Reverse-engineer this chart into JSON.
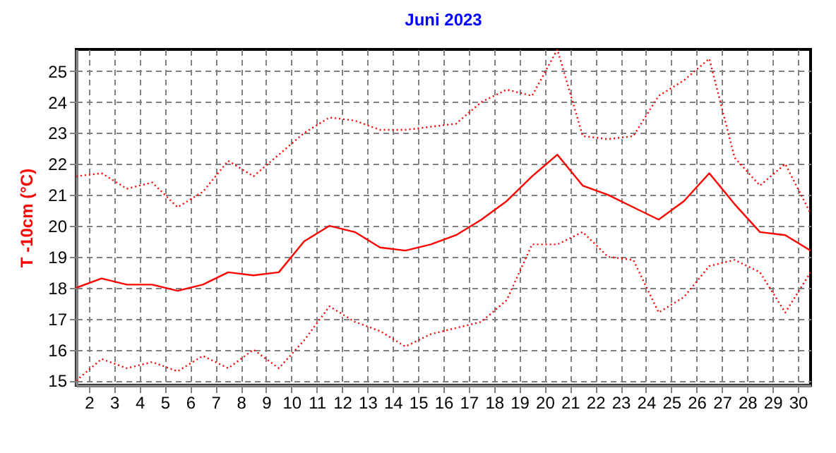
{
  "chart_data": {
    "type": "line",
    "title": "Juni 2023",
    "ylabel": "T -10cm (°C)",
    "x": [
      1.5,
      2.5,
      3.5,
      4.5,
      5.5,
      6.5,
      7.5,
      8.5,
      9.5,
      10.5,
      11.5,
      12.5,
      13.5,
      14.5,
      15.5,
      16.5,
      17.5,
      18.5,
      19.5,
      20.5,
      21.5,
      22.5,
      23.5,
      24.5,
      25.5,
      26.5,
      27.5,
      28.5,
      29.5,
      30.5
    ],
    "series": [
      {
        "color": "#ff0000",
        "line_style": "dotted",
        "values": [
          21.6,
          21.7,
          21.2,
          21.4,
          20.6,
          21.1,
          22.1,
          21.6,
          22.3,
          23.0,
          23.5,
          23.4,
          23.1,
          23.1,
          23.2,
          23.3,
          24.0,
          24.4,
          24.2,
          25.7,
          22.9,
          22.8,
          22.9,
          24.2,
          24.7,
          25.4,
          22.2,
          21.3,
          22.0,
          20.4
        ]
      },
      {
        "color": "#ff0000",
        "line_style": "solid",
        "values": [
          18.0,
          18.3,
          18.1,
          18.1,
          17.9,
          18.1,
          18.5,
          18.4,
          18.5,
          19.5,
          20.0,
          19.8,
          19.3,
          19.2,
          19.4,
          19.7,
          20.2,
          20.8,
          21.6,
          22.3,
          21.3,
          21.0,
          20.6,
          20.2,
          20.8,
          21.7,
          20.7,
          19.8,
          19.7,
          19.2
        ]
      },
      {
        "color": "#ff0000",
        "line_style": "dotted",
        "values": [
          15.0,
          15.7,
          15.4,
          15.6,
          15.3,
          15.8,
          15.4,
          16.0,
          15.4,
          16.3,
          17.4,
          16.9,
          16.6,
          16.1,
          16.5,
          16.7,
          16.9,
          17.6,
          19.4,
          19.4,
          19.8,
          19.0,
          18.9,
          17.2,
          17.7,
          18.7,
          18.9,
          18.5,
          17.2,
          18.5
        ]
      }
    ],
    "xlim": [
      1.5,
      30.5
    ],
    "xticks": [
      2,
      3,
      4,
      5,
      6,
      7,
      8,
      9,
      10,
      11,
      12,
      13,
      14,
      15,
      16,
      17,
      18,
      19,
      20,
      21,
      22,
      23,
      24,
      25,
      26,
      27,
      28,
      29,
      30
    ],
    "ylim": [
      14.85,
      25.7
    ],
    "yticks": [
      15,
      16,
      17,
      18,
      19,
      20,
      21,
      22,
      23,
      24,
      25
    ],
    "grid": true,
    "marker": "none"
  }
}
